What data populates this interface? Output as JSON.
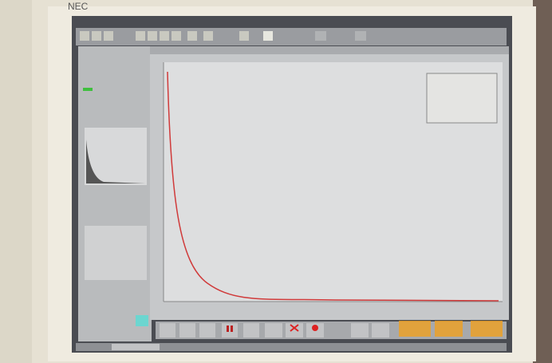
{
  "monitor": {
    "brand": "NEC"
  }
}
